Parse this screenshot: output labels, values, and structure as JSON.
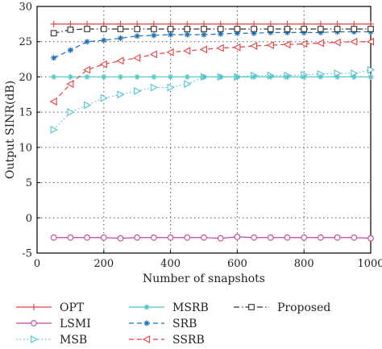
{
  "chart_data": {
    "type": "line",
    "title": "",
    "xlabel": "Number of snapshots",
    "ylabel": "Output SINR(dB)",
    "xlim": [
      0,
      1000
    ],
    "ylim": [
      -5,
      30
    ],
    "xticks": [
      "0",
      "200",
      "400",
      "600",
      "800",
      "1000"
    ],
    "yticks": [
      "-5",
      "0",
      "5",
      "10",
      "15",
      "20",
      "25",
      "30"
    ],
    "grid": true,
    "legend_position": "below",
    "x": [
      50,
      100,
      150,
      200,
      250,
      300,
      350,
      400,
      450,
      500,
      550,
      600,
      650,
      700,
      750,
      800,
      850,
      900,
      950,
      1000
    ],
    "series": [
      {
        "name": "OPT",
        "color": "#e8423f",
        "dash": "solid",
        "marker": "plus",
        "values": [
          27.5,
          27.5,
          27.5,
          27.5,
          27.5,
          27.5,
          27.5,
          27.5,
          27.5,
          27.5,
          27.5,
          27.5,
          27.5,
          27.5,
          27.5,
          27.5,
          27.5,
          27.5,
          27.5,
          27.5
        ]
      },
      {
        "name": "LSMI",
        "color": "#c2469a",
        "dash": "solid",
        "marker": "circle",
        "values": [
          -2.8,
          -2.8,
          -2.8,
          -2.8,
          -2.9,
          -2.8,
          -2.8,
          -2.8,
          -2.8,
          -2.8,
          -2.9,
          -2.7,
          -2.8,
          -2.8,
          -2.8,
          -2.8,
          -2.8,
          -2.8,
          -2.8,
          -2.9
        ]
      },
      {
        "name": "MSB",
        "color": "#4fc3d6",
        "dash": "dot",
        "marker": "triangle-right",
        "values": [
          12.5,
          15,
          16,
          17,
          17.5,
          18,
          18.5,
          18.5,
          19,
          20,
          20,
          20,
          20.2,
          20.2,
          20.2,
          20.3,
          20.4,
          20.5,
          20.5,
          21
        ]
      },
      {
        "name": "MSRB",
        "color": "#52c5c8",
        "dash": "solid",
        "marker": "star",
        "values": [
          20,
          20,
          20,
          20,
          20,
          20,
          20,
          20,
          20,
          20,
          20,
          20,
          20,
          20,
          20,
          20,
          20,
          20,
          20,
          20
        ]
      },
      {
        "name": "SRB",
        "color": "#1f6fb4",
        "dash": "dash",
        "marker": "star",
        "values": [
          22.7,
          23.8,
          25,
          25.2,
          25.5,
          25.8,
          25.9,
          26,
          26,
          26,
          26.1,
          26.2,
          26.2,
          26.3,
          26.3,
          26.3,
          26.3,
          26.4,
          26.4,
          26.4
        ]
      },
      {
        "name": "SSRB",
        "color": "#e8423f",
        "dash": "dash",
        "marker": "triangle-left",
        "values": [
          16.5,
          19,
          21,
          21.8,
          22.3,
          22.7,
          23.2,
          23.5,
          23.7,
          23.9,
          24.1,
          24.2,
          24.4,
          24.5,
          24.6,
          24.7,
          24.8,
          24.9,
          25,
          25
        ]
      },
      {
        "name": "Proposed",
        "color": "#333333",
        "dash": "dashdot",
        "marker": "square",
        "values": [
          26.2,
          26.7,
          26.8,
          26.8,
          26.8,
          26.8,
          26.8,
          26.8,
          26.8,
          26.8,
          26.8,
          26.8,
          26.8,
          26.8,
          26.8,
          26.8,
          26.8,
          26.8,
          26.8,
          26.8
        ]
      }
    ]
  }
}
